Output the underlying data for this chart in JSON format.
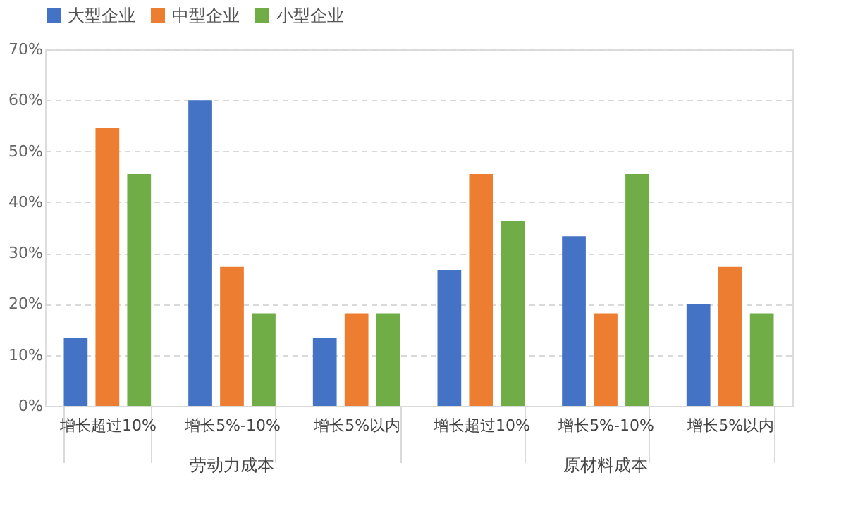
{
  "chart_data": {
    "type": "bar",
    "categories": [
      "增长超过10%",
      "增长5%-10%",
      "增长5%以内",
      "增长超过10%",
      "增长5%-10%",
      "增长5%以内"
    ],
    "series": [
      {
        "name": "大型企业",
        "color": "#4472c4",
        "values": [
          13.3,
          60,
          13.3,
          26.7,
          33.3,
          20
        ]
      },
      {
        "name": "中型企业",
        "color": "#ed7d31",
        "values": [
          54.5,
          27.3,
          18.2,
          45.5,
          18.2,
          27.3
        ]
      },
      {
        "name": "小型企业",
        "color": "#70ad47",
        "values": [
          45.5,
          18.2,
          18.2,
          36.4,
          45.5,
          18.2
        ]
      }
    ],
    "annotations": [
      "劳动力成本",
      "原材料成本"
    ],
    "ylim": [
      0,
      70
    ],
    "yticks": [
      {
        "value": 0,
        "label": "0%"
      },
      {
        "value": 10,
        "label": "10%"
      },
      {
        "value": 20,
        "label": "20%"
      },
      {
        "value": 30,
        "label": "30%"
      },
      {
        "value": 40,
        "label": "40%"
      },
      {
        "value": 50,
        "label": "50%"
      },
      {
        "value": 60,
        "label": "60%"
      },
      {
        "value": 70,
        "label": "70%"
      }
    ],
    "grid": "y",
    "legend": "top"
  }
}
